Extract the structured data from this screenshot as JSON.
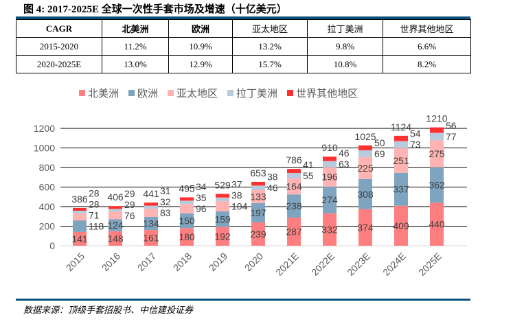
{
  "title": "图 4: 2017-2025E 全球一次性手套市场及增速（十亿美元）",
  "table": {
    "headers": [
      "CAGR",
      "北美洲",
      "欧洲",
      "亚太地区",
      "拉丁美洲",
      "世界其他地区"
    ],
    "rows": [
      [
        "2015-2020",
        "11.2%",
        "10.9%",
        "13.2%",
        "9.8%",
        "6.6%"
      ],
      [
        "2020-2025E",
        "13.0%",
        "12.9%",
        "15.7%",
        "10.8%",
        "8.2%"
      ]
    ]
  },
  "chart_data": {
    "type": "bar",
    "stacked": true,
    "categories": [
      "2015",
      "2016",
      "2017",
      "2018",
      "2019",
      "2020",
      "2021E",
      "2022E",
      "2023E",
      "2024E",
      "2025E"
    ],
    "series": [
      {
        "name": "北美洲",
        "color": "#ff7f80",
        "values": [
          141,
          148,
          161,
          180,
          192,
          239,
          287,
          332,
          374,
          409,
          440
        ]
      },
      {
        "name": "欧洲",
        "color": "#7fa4bf",
        "values": [
          118,
          124,
          134,
          150,
          159,
          197,
          238,
          274,
          308,
          337,
          362
        ]
      },
      {
        "name": "亚太地区",
        "color": "#ffb3b3",
        "values": [
          71,
          76,
          83,
          96,
          104,
          133,
          164,
          196,
          225,
          251,
          275
        ]
      },
      {
        "name": "拉丁美洲",
        "color": "#b7cbdc",
        "values": [
          28,
          29,
          32,
          35,
          38,
          46,
          55,
          63,
          69,
          73,
          77
        ]
      },
      {
        "name": "世界其他地区",
        "color": "#ff3030",
        "values": [
          28,
          29,
          31,
          34,
          37,
          38,
          41,
          46,
          50,
          54,
          56
        ]
      }
    ],
    "totals": [
      386,
      406,
      441,
      495,
      529,
      653,
      786,
      910,
      1025,
      1124,
      1210
    ],
    "ylim": [
      0,
      1200
    ],
    "yticks": [
      0,
      200,
      400,
      600,
      800,
      1000,
      1200
    ],
    "grid": true,
    "legend": "top"
  },
  "source": "数据来源：顶级手套招股书、中信建投证券"
}
